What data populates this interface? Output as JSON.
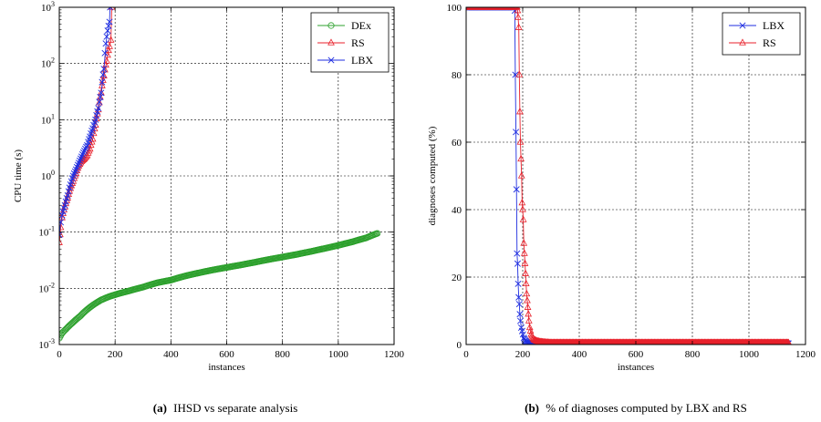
{
  "chart_data": [
    {
      "type": "line",
      "caption_label": "(a)",
      "caption_text": "IHSD vs separate analysis",
      "xlabel": "instances",
      "ylabel": "CPU time (s)",
      "xlim": [
        0,
        1200
      ],
      "ylim": [
        0.001,
        1000
      ],
      "yscale": "log",
      "grid": true,
      "legend_position": "top-right",
      "xticks": [
        0,
        200,
        400,
        600,
        800,
        1000,
        1200
      ],
      "yticks": [
        {
          "base": "10",
          "exp": "-3",
          "value": 0.001
        },
        {
          "base": "10",
          "exp": "-2",
          "value": 0.01
        },
        {
          "base": "10",
          "exp": "-1",
          "value": 0.1
        },
        {
          "base": "10",
          "exp": "0",
          "value": 1
        },
        {
          "base": "10",
          "exp": "1",
          "value": 10
        },
        {
          "base": "10",
          "exp": "2",
          "value": 100
        },
        {
          "base": "10",
          "exp": "3",
          "value": 1000
        }
      ],
      "series": [
        {
          "name": "DEx",
          "color": "#2ca02c",
          "marker": "circle",
          "points": [
            [
              0,
              0.0013
            ],
            [
              10,
              0.0016
            ],
            [
              25,
              0.0019
            ],
            [
              50,
              0.0025
            ],
            [
              75,
              0.0032
            ],
            [
              100,
              0.0042
            ],
            [
              125,
              0.0052
            ],
            [
              150,
              0.0062
            ],
            [
              175,
              0.007
            ],
            [
              200,
              0.0077
            ],
            [
              250,
              0.009
            ],
            [
              300,
              0.0105
            ],
            [
              350,
              0.0125
            ],
            [
              400,
              0.014
            ],
            [
              450,
              0.0165
            ],
            [
              500,
              0.0188
            ],
            [
              550,
              0.0212
            ],
            [
              600,
              0.0235
            ],
            [
              650,
              0.026
            ],
            [
              700,
              0.029
            ],
            [
              750,
              0.0325
            ],
            [
              800,
              0.036
            ],
            [
              850,
              0.04
            ],
            [
              900,
              0.045
            ],
            [
              950,
              0.051
            ],
            [
              1000,
              0.058
            ],
            [
              1050,
              0.067
            ],
            [
              1100,
              0.079
            ],
            [
              1140,
              0.095
            ]
          ]
        },
        {
          "name": "RS",
          "color": "#e8212b",
          "marker": "triangle",
          "points": [
            [
              0,
              0.065
            ],
            [
              3,
              0.09
            ],
            [
              5,
              0.12
            ],
            [
              10,
              0.18
            ],
            [
              20,
              0.28
            ],
            [
              30,
              0.4
            ],
            [
              40,
              0.6
            ],
            [
              50,
              0.8
            ],
            [
              60,
              1.1
            ],
            [
              70,
              1.5
            ],
            [
              80,
              1.8
            ],
            [
              90,
              2.0
            ],
            [
              100,
              2.3
            ],
            [
              110,
              3
            ],
            [
              120,
              4.5
            ],
            [
              130,
              8
            ],
            [
              140,
              15
            ],
            [
              150,
              30
            ],
            [
              160,
              60
            ],
            [
              170,
              110
            ],
            [
              180,
              200
            ],
            [
              185,
              260
            ],
            [
              188,
              1000
            ]
          ]
        },
        {
          "name": "LBX",
          "color": "#1f2ee0",
          "marker": "x",
          "points": [
            [
              0,
              0.09
            ],
            [
              5,
              0.15
            ],
            [
              10,
              0.2
            ],
            [
              20,
              0.3
            ],
            [
              30,
              0.45
            ],
            [
              40,
              0.7
            ],
            [
              50,
              1.0
            ],
            [
              60,
              1.3
            ],
            [
              70,
              1.7
            ],
            [
              80,
              2.2
            ],
            [
              90,
              2.8
            ],
            [
              100,
              3.5
            ],
            [
              110,
              5
            ],
            [
              120,
              7
            ],
            [
              130,
              10
            ],
            [
              140,
              16
            ],
            [
              150,
              30
            ],
            [
              160,
              80
            ],
            [
              170,
              300
            ],
            [
              180,
              550
            ],
            [
              182,
              1000
            ]
          ]
        }
      ]
    },
    {
      "type": "line",
      "caption_label": "(b)",
      "caption_text": "% of diagnoses computed by LBX and RS",
      "xlabel": "instances",
      "ylabel": "diagnoses computed (%)",
      "xlim": [
        0,
        1200
      ],
      "ylim": [
        0,
        100
      ],
      "grid": true,
      "legend_position": "top-right",
      "xticks": [
        0,
        200,
        400,
        600,
        800,
        1000,
        1200
      ],
      "yticks": [
        0,
        20,
        40,
        60,
        80,
        100
      ],
      "series": [
        {
          "name": "LBX",
          "color": "#1f2ee0",
          "marker": "x",
          "points": [
            [
              0,
              100
            ],
            [
              170,
              100
            ],
            [
              172,
              99
            ],
            [
              174,
              80
            ],
            [
              176,
              63
            ],
            [
              178,
              46
            ],
            [
              180,
              27
            ],
            [
              182,
              24
            ],
            [
              184,
              18
            ],
            [
              186,
              14
            ],
            [
              188,
              12
            ],
            [
              190,
              9
            ],
            [
              192,
              7
            ],
            [
              195,
              5
            ],
            [
              198,
              4
            ],
            [
              201,
              3
            ],
            [
              204,
              2
            ],
            [
              208,
              1.2
            ],
            [
              212,
              0.8
            ],
            [
              216,
              0.5
            ],
            [
              220,
              0.4
            ],
            [
              250,
              0.3
            ],
            [
              300,
              0.3
            ],
            [
              1140,
              0.3
            ]
          ]
        },
        {
          "name": "RS",
          "color": "#e8212b",
          "marker": "triangle",
          "points": [
            [
              0,
              100
            ],
            [
              180,
              100
            ],
            [
              182,
              99
            ],
            [
              184,
              97
            ],
            [
              186,
              94
            ],
            [
              188,
              80
            ],
            [
              190,
              69
            ],
            [
              192,
              60
            ],
            [
              194,
              55
            ],
            [
              196,
              50
            ],
            [
              198,
              42
            ],
            [
              200,
              40
            ],
            [
              202,
              37
            ],
            [
              204,
              30
            ],
            [
              206,
              27
            ],
            [
              208,
              24
            ],
            [
              210,
              21
            ],
            [
              212,
              18
            ],
            [
              214,
              15
            ],
            [
              216,
              13
            ],
            [
              218,
              11
            ],
            [
              220,
              9
            ],
            [
              222,
              7
            ],
            [
              225,
              5
            ],
            [
              230,
              3
            ],
            [
              235,
              2
            ],
            [
              240,
              1.4
            ],
            [
              250,
              1
            ],
            [
              260,
              0.8
            ],
            [
              280,
              0.6
            ],
            [
              300,
              0.5
            ],
            [
              1140,
              0.5
            ]
          ]
        }
      ]
    }
  ]
}
